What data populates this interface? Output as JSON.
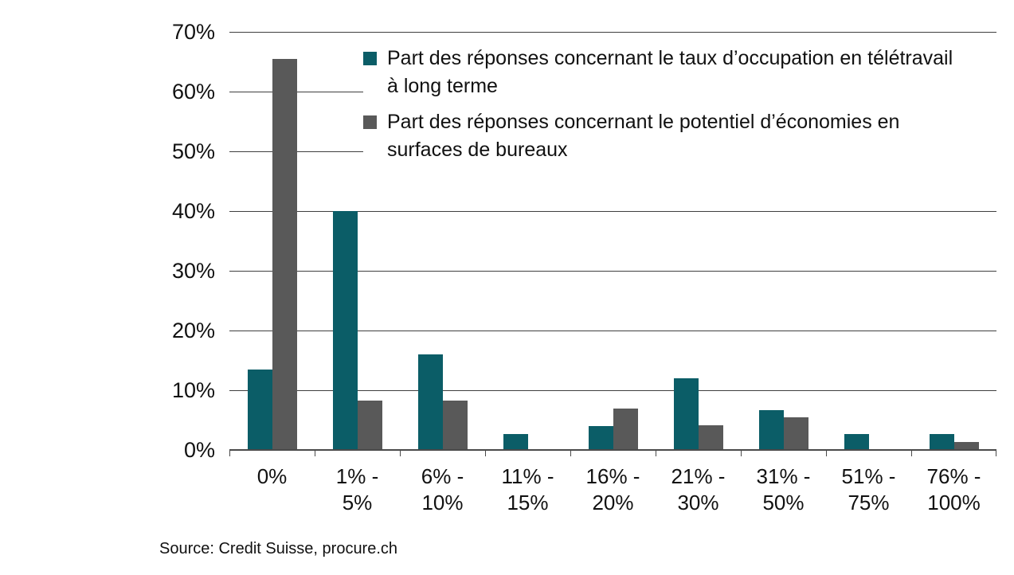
{
  "colors": {
    "series1": "#0B5D67",
    "series2": "#595959",
    "gridline": "#3f3f3f",
    "axis": "#4a4a4a",
    "text": "#111111",
    "background": "#ffffff"
  },
  "chart_data": {
    "type": "bar",
    "categories": [
      "0%",
      "1% - 5%",
      "6% - 10%",
      "11% - 15%",
      "16% - 20%",
      "21% - 30%",
      "31% - 50%",
      "51% - 75%",
      "76% - 100%"
    ],
    "category_label_lines": [
      [
        "0%"
      ],
      [
        "1% -",
        "5%"
      ],
      [
        "6% -",
        "10%"
      ],
      [
        "11% -",
        "15%"
      ],
      [
        "16% -",
        "20%"
      ],
      [
        "21% -",
        "30%"
      ],
      [
        "31% -",
        "50%"
      ],
      [
        "51% -",
        "75%"
      ],
      [
        "76% -",
        "100%"
      ]
    ],
    "series": [
      {
        "name": "Part des réponses concernant le taux d’occupation en télétravail à long terme",
        "legend_lines": [
          "Part des réponses concernant le taux d’occupation en télétravail",
          "à long terme"
        ],
        "color": "#0B5D67",
        "values": [
          13.5,
          40,
          16,
          2.7,
          4,
          12,
          6.7,
          2.7,
          2.7
        ]
      },
      {
        "name": "Part des réponses concernant le potentiel d’économies en surfaces de bureaux",
        "legend_lines": [
          "Part des réponses concernant le potentiel d’économies en",
          "surfaces de bureaux"
        ],
        "color": "#595959",
        "values": [
          65.5,
          8.3,
          8.3,
          0,
          7,
          4.2,
          5.5,
          0,
          1.4
        ]
      }
    ],
    "title": "",
    "xlabel": "",
    "ylabel": "",
    "ylim": [
      0,
      70
    ],
    "ytick_step": 10,
    "ytick_labels": [
      "0%",
      "10%",
      "20%",
      "30%",
      "40%",
      "50%",
      "60%",
      "70%"
    ],
    "grid": true,
    "legend_position": "top-right-inside"
  },
  "source": {
    "label": "Source: Credit Suisse, procure.ch"
  }
}
